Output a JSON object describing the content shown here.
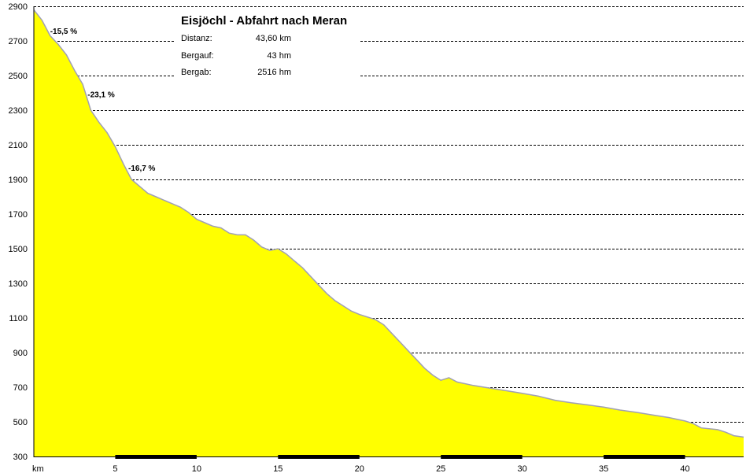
{
  "chart_data": {
    "type": "area",
    "title": "Eisjöchl - Abfahrt nach Meran",
    "xlabel": "km",
    "ylabel": "",
    "xlim": [
      0,
      43.6
    ],
    "ylim": [
      300,
      2900
    ],
    "x_ticks": [
      5,
      10,
      15,
      20,
      25,
      30,
      35,
      40
    ],
    "y_ticks": [
      300,
      500,
      700,
      900,
      1100,
      1300,
      1500,
      1700,
      1900,
      2100,
      2300,
      2500,
      2700,
      2900
    ],
    "grid": true,
    "fill_color": "#ffff00",
    "line_color": "#a0a0b4",
    "series": [
      {
        "x": [
          0,
          0.5,
          1,
          1.5,
          2,
          2.5,
          3,
          3.5,
          4,
          4.5,
          5,
          5.5,
          6,
          6.5,
          7,
          7.5,
          8,
          8.5,
          9,
          9.5,
          10,
          10.5,
          11,
          11.5,
          12,
          12.5,
          13,
          13.5,
          14,
          14.5,
          15,
          15.5,
          16,
          16.5,
          17,
          17.5,
          18,
          18.5,
          19,
          19.5,
          20,
          20.5,
          21,
          21.5,
          22,
          22.5,
          23,
          23.5,
          24,
          24.5,
          25,
          25.5,
          26,
          27,
          28,
          29,
          30,
          31,
          32,
          33,
          34,
          35,
          36,
          37,
          38,
          39,
          40,
          40.5,
          41,
          42,
          42.5,
          43,
          43.6
        ],
        "y": [
          2880,
          2820,
          2730,
          2680,
          2620,
          2530,
          2450,
          2300,
          2230,
          2170,
          2090,
          1990,
          1900,
          1860,
          1820,
          1800,
          1780,
          1760,
          1740,
          1710,
          1670,
          1650,
          1630,
          1620,
          1590,
          1580,
          1580,
          1550,
          1510,
          1490,
          1500,
          1470,
          1430,
          1390,
          1340,
          1290,
          1240,
          1200,
          1170,
          1140,
          1120,
          1105,
          1090,
          1060,
          1010,
          960,
          910,
          860,
          810,
          770,
          740,
          755,
          730,
          710,
          695,
          680,
          665,
          648,
          625,
          610,
          598,
          585,
          568,
          555,
          540,
          525,
          505,
          490,
          465,
          455,
          440,
          420,
          412
        ]
      }
    ],
    "gradient_labels": [
      {
        "text": "-15,5 %",
        "x": 1.0,
        "y": 2740
      },
      {
        "text": "-23,1 %",
        "x": 3.3,
        "y": 2375
      },
      {
        "text": "-16,7 %",
        "x": 5.8,
        "y": 1950
      }
    ],
    "info": {
      "rows": [
        {
          "label": "Distanz:",
          "value": "43,60 km"
        },
        {
          "label": "Bergauf:",
          "value": "43 hm"
        },
        {
          "label": "Bergab:",
          "value": "2516 hm"
        }
      ]
    }
  }
}
